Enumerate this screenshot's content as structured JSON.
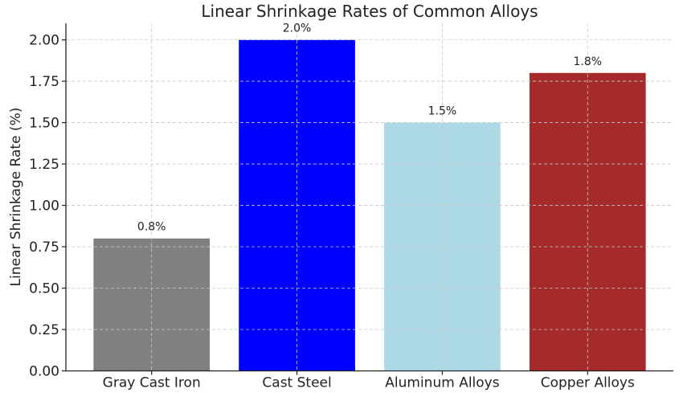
{
  "chart_data": {
    "type": "bar",
    "title": "Linear Shrinkage Rates of Common Alloys",
    "xlabel": "",
    "ylabel": "Linear Shrinkage Rate (%)",
    "categories": [
      "Gray Cast Iron",
      "Cast Steel",
      "Aluminum Alloys",
      "Copper Alloys"
    ],
    "values": [
      0.8,
      2.0,
      1.5,
      1.8
    ],
    "data_labels": [
      "0.8%",
      "2.0%",
      "1.5%",
      "1.8%"
    ],
    "colors": [
      "#808080",
      "#0000ff",
      "#add8e6",
      "#a52a2a"
    ],
    "ylim": [
      0,
      2.1
    ],
    "yticks": [
      0,
      0.25,
      0.5,
      0.75,
      1.0,
      1.25,
      1.5,
      1.75,
      2.0
    ],
    "ytick_labels": [
      "0.00",
      "0.25",
      "0.50",
      "0.75",
      "1.00",
      "1.25",
      "1.50",
      "1.75",
      "2.00"
    ],
    "grid": true,
    "legend": "none"
  }
}
